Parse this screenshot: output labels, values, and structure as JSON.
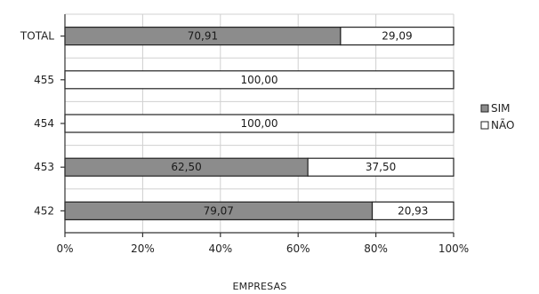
{
  "chart_data": {
    "type": "bar",
    "orientation": "horizontal",
    "stacked": "percent",
    "categories": [
      "TOTAL",
      "455",
      "454",
      "453",
      "452"
    ],
    "series": [
      {
        "name": "SIM",
        "color": "#8c8c8c",
        "values": [
          70.91,
          0,
          0,
          62.5,
          79.07
        ],
        "labels": [
          "70,91",
          "",
          "",
          "62,50",
          "79,07"
        ]
      },
      {
        "name": "NÃO",
        "color": "#ffffff",
        "values": [
          29.09,
          100.0,
          100.0,
          37.5,
          20.93
        ],
        "labels": [
          "29,09",
          "100,00",
          "100,00",
          "37,50",
          "20,93"
        ]
      }
    ],
    "xlabel": "EMPRESAS",
    "xlim": [
      0,
      100
    ],
    "xticks": [
      0,
      20,
      40,
      60,
      80,
      100
    ],
    "xtick_labels": [
      "0%",
      "20%",
      "40%",
      "60%",
      "80%",
      "100%"
    ],
    "grid": true,
    "legend_position": "right"
  }
}
